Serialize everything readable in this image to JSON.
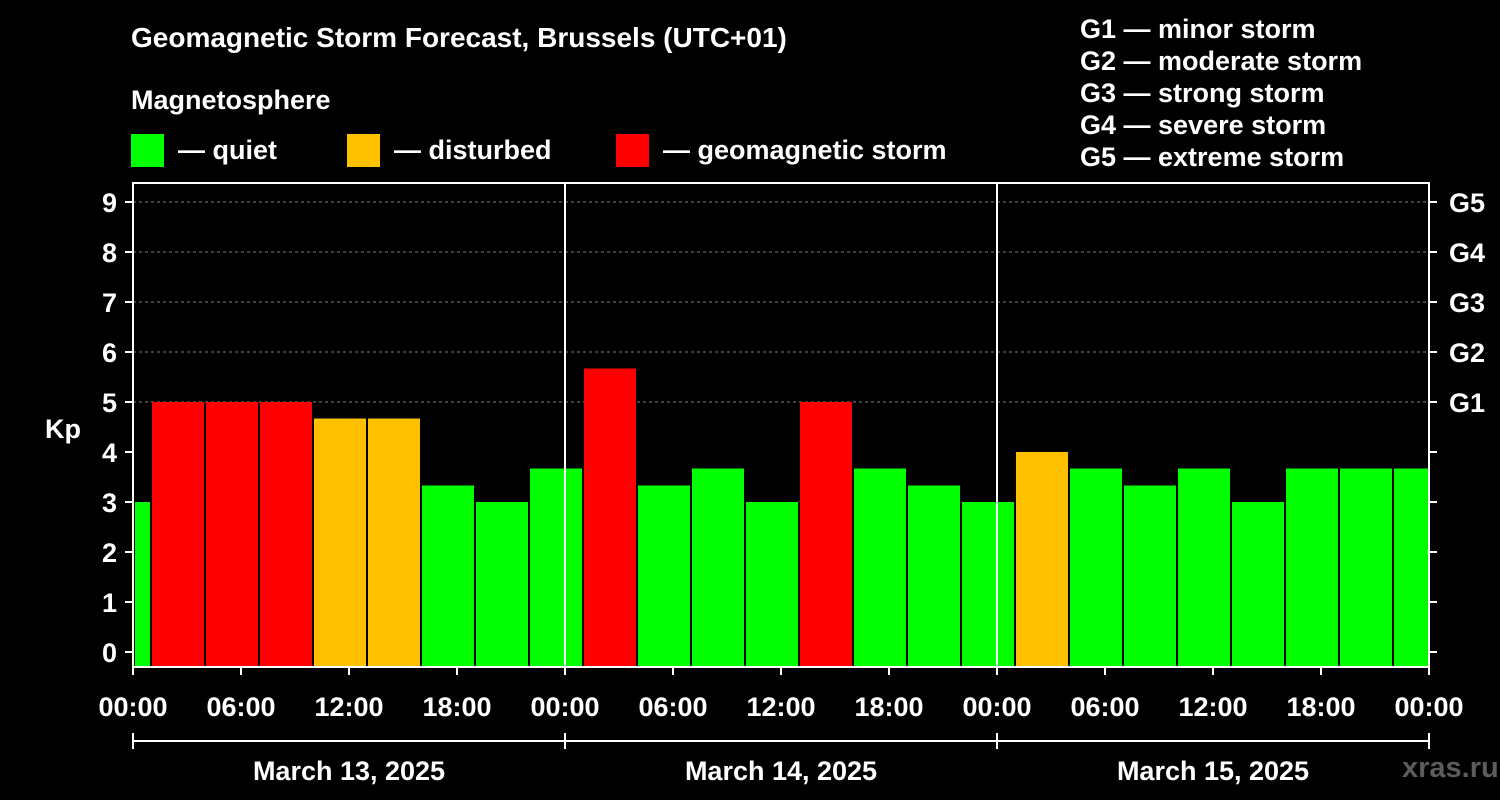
{
  "title": "Geomagnetic Storm Forecast, Brussels (UTC+01)",
  "subtitle": "Magnetosphere",
  "legend": [
    {
      "label": "— quiet",
      "color": "#00ff00"
    },
    {
      "label": "— disturbed",
      "color": "#ffc000"
    },
    {
      "label": "— geomagnetic storm",
      "color": "#ff0000"
    }
  ],
  "storm_scale": [
    "G1 — minor storm",
    "G2 — moderate storm",
    "G3 — strong storm",
    "G4 — severe storm",
    "G5 — extreme storm"
  ],
  "watermark": "xras.ru",
  "chart_data": {
    "type": "bar",
    "title": "Geomagnetic Storm Forecast, Brussels (UTC+01)",
    "ylabel": "Kp",
    "ylim": [
      0,
      9
    ],
    "y_ticks": [
      "0",
      "1",
      "2",
      "3",
      "4",
      "5",
      "6",
      "7",
      "8",
      "9"
    ],
    "right_axis_ticks": [
      {
        "kp": 5,
        "label": "G1"
      },
      {
        "kp": 6,
        "label": "G2"
      },
      {
        "kp": 7,
        "label": "G3"
      },
      {
        "kp": 8,
        "label": "G4"
      },
      {
        "kp": 9,
        "label": "G5"
      }
    ],
    "x_tick_labels": [
      "00:00",
      "06:00",
      "12:00",
      "18:00",
      "00:00",
      "06:00",
      "12:00",
      "18:00",
      "00:00",
      "06:00",
      "12:00",
      "18:00",
      "00:00"
    ],
    "days": [
      "March 13, 2025",
      "March 14, 2025",
      "March 15, 2025"
    ],
    "bar_interval_hours": 3,
    "first_bar_start_hour": -2,
    "values": [
      3.0,
      5.0,
      5.0,
      5.0,
      4.67,
      4.67,
      3.33,
      3.0,
      3.67,
      5.67,
      3.33,
      3.67,
      3.0,
      5.0,
      3.67,
      3.33,
      3.0,
      4.0,
      3.67,
      3.33,
      3.67,
      3.0,
      3.67,
      3.67,
      3.67
    ],
    "levels": [
      "quiet",
      "storm",
      "storm",
      "storm",
      "disturbed",
      "disturbed",
      "quiet",
      "quiet",
      "quiet",
      "storm",
      "quiet",
      "quiet",
      "quiet",
      "storm",
      "quiet",
      "quiet",
      "quiet",
      "disturbed",
      "quiet",
      "quiet",
      "quiet",
      "quiet",
      "quiet",
      "quiet",
      "quiet"
    ],
    "colors": {
      "quiet": "#00ff00",
      "disturbed": "#ffc000",
      "storm": "#ff0000"
    }
  }
}
